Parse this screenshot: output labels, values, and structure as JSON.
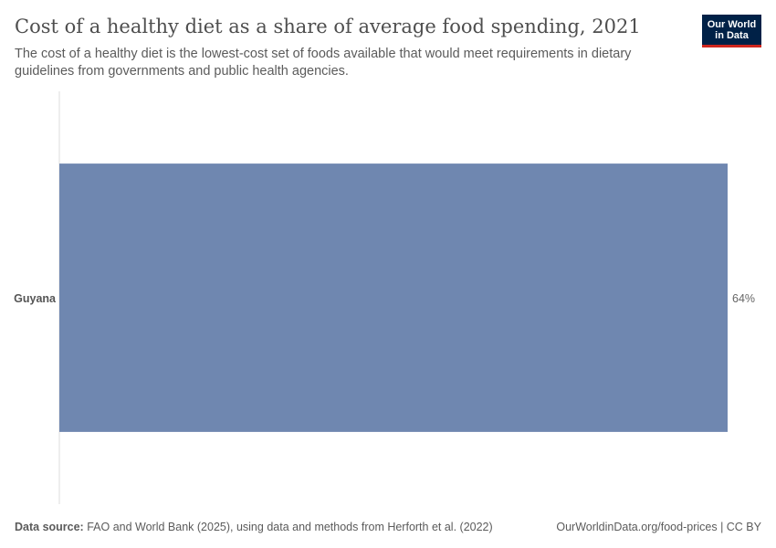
{
  "title": "Cost of a healthy diet as a share of average food spending, 2021",
  "subtitle": "The cost of a healthy diet is the lowest-cost set of foods available that would meet requirements in dietary guidelines from governments and public health agencies.",
  "logo": {
    "line1": "Our World",
    "line2": "in Data"
  },
  "footer": {
    "source_label": "Data source:",
    "source_text": "FAO and World Bank (2025), using data and methods from Herforth et al. (2022)",
    "license": "OurWorldinData.org/food-prices | CC BY"
  },
  "colors": {
    "bar": "#6f87b0",
    "axis": "#dddddd",
    "brand": "#002147",
    "brand_accent": "#ce261e"
  },
  "chart_data": {
    "type": "bar",
    "orientation": "horizontal",
    "categories": [
      "Guyana"
    ],
    "values": [
      64
    ],
    "value_labels": [
      "64%"
    ],
    "unit": "%",
    "xlim": [
      0,
      64
    ]
  }
}
